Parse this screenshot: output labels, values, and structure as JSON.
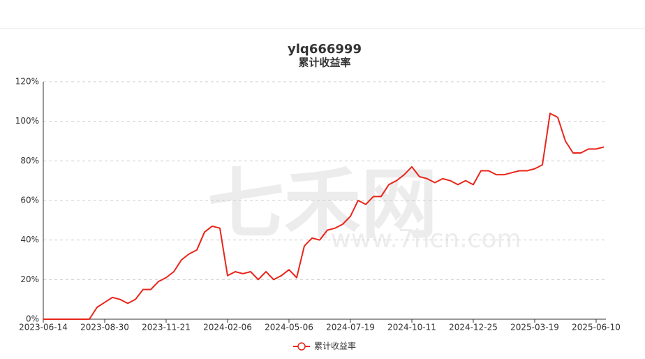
{
  "chart_data": {
    "type": "line",
    "title": "ylq666999",
    "subtitle": "累计收益率",
    "watermark": "七禾网",
    "watermark_url": "www.7hcn.com",
    "categories": [
      "2023-06-14",
      null,
      null,
      null,
      null,
      null,
      null,
      null,
      "2023-08-30",
      null,
      null,
      null,
      null,
      null,
      null,
      null,
      "2023-11-21",
      null,
      null,
      null,
      null,
      null,
      null,
      null,
      "2024-02-06",
      null,
      null,
      null,
      null,
      null,
      null,
      null,
      "2024-05-06",
      null,
      null,
      null,
      null,
      null,
      null,
      null,
      "2024-07-19",
      null,
      null,
      null,
      null,
      null,
      null,
      null,
      "2024-10-11",
      null,
      null,
      null,
      null,
      null,
      null,
      null,
      "2024-12-25",
      null,
      null,
      null,
      null,
      null,
      null,
      null,
      "2025-03-19",
      null,
      null,
      null,
      null,
      null,
      null,
      null,
      "2025-06-10",
      null
    ],
    "series": [
      {
        "name": "累计收益率",
        "color": "#e8251b",
        "values": [
          0,
          0,
          0,
          0,
          0,
          0,
          0,
          6,
          8.5,
          11,
          10,
          8,
          10,
          15,
          15,
          19,
          21,
          24,
          30,
          33,
          35,
          44,
          47,
          46,
          22,
          24,
          23,
          24,
          20,
          24,
          20,
          22,
          25,
          21,
          37,
          41,
          40,
          45,
          46,
          48,
          52,
          60,
          58,
          62,
          62,
          68,
          70,
          73,
          77,
          72,
          71,
          69,
          71,
          70,
          68,
          70,
          68,
          75,
          75,
          73,
          73,
          74,
          75,
          75,
          76,
          78,
          104,
          102,
          90,
          84,
          84,
          86,
          86,
          87
        ]
      }
    ],
    "ylim": [
      0,
      120
    ],
    "yticks": [
      {
        "value": 0,
        "label": "0%"
      },
      {
        "value": 20,
        "label": "20%"
      },
      {
        "value": 40,
        "label": "40%"
      },
      {
        "value": 60,
        "label": "60%"
      },
      {
        "value": 80,
        "label": "80%"
      },
      {
        "value": 100,
        "label": "100%"
      },
      {
        "value": 120,
        "label": "120%"
      }
    ],
    "grid": true,
    "legend": "bottom"
  }
}
